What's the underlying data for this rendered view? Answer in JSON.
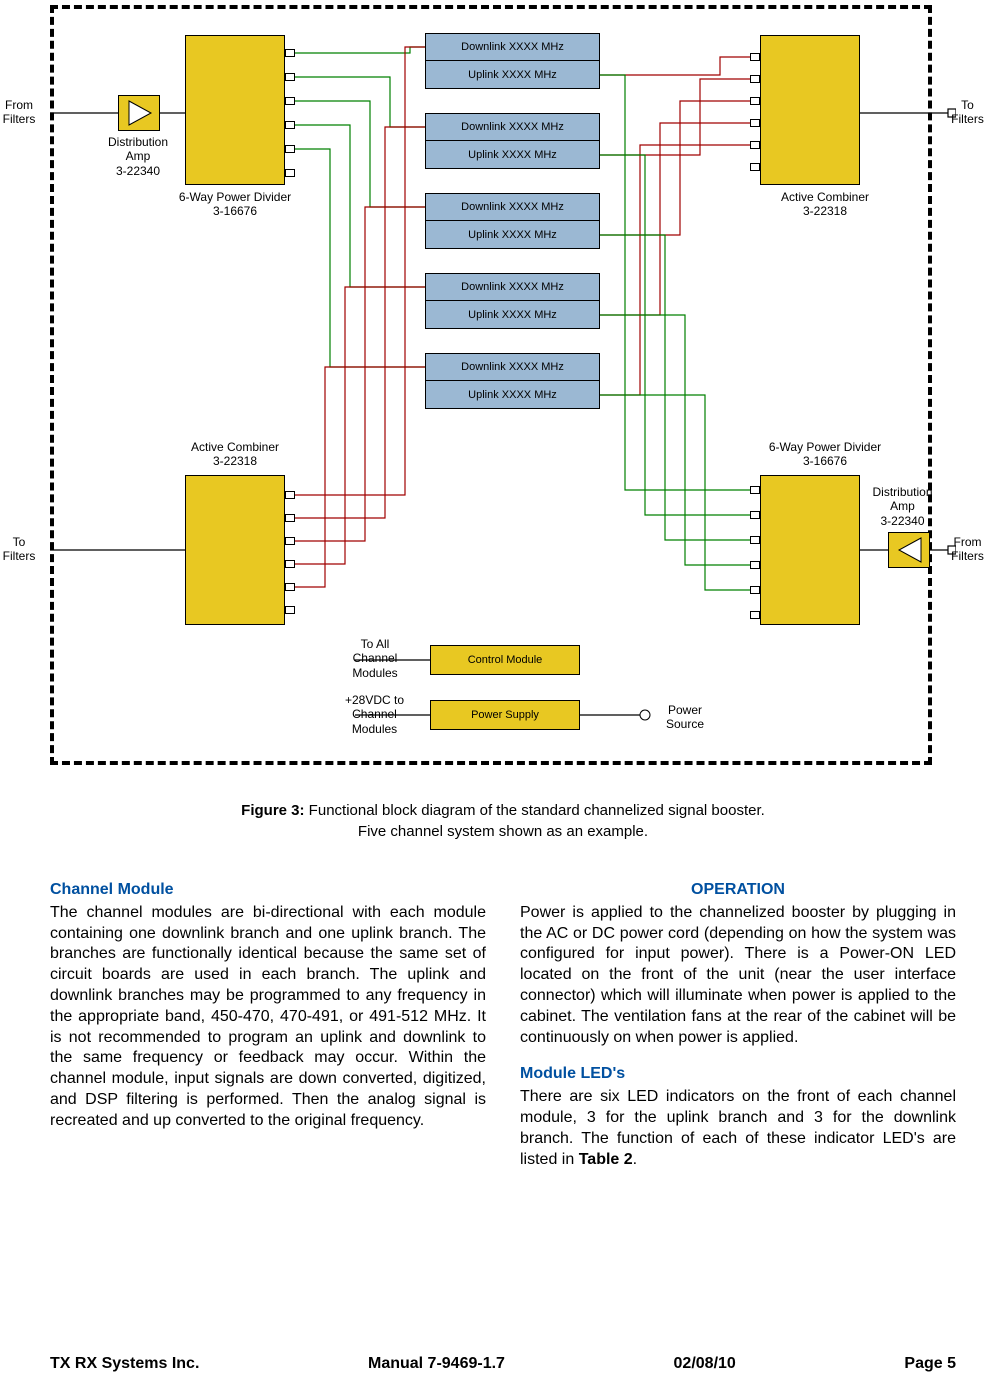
{
  "diagram": {
    "labels": {
      "from_filters_tl": "From\nFilters",
      "to_filters_tr": "To\nFilters",
      "to_filters_bl": "To\nFilters",
      "from_filters_br": "From\nFilters",
      "dist_amp_top": "Distribution\nAmp\n3-22340",
      "dist_amp_bot": "Distribution\nAmp\n3-22340",
      "divider_top": "6-Way Power Divider\n3-16676",
      "divider_bot": "6-Way Power Divider\n3-16676",
      "combiner_top": "Active Combiner\n3-22318",
      "combiner_bot": "Active Combiner\n3-22318",
      "control_module": "Control Module",
      "power_supply": "Power Supply",
      "to_all_channel": "To All\nChannel\nModules",
      "vdc_channel": "+28VDC to\nChannel\nModules",
      "power_source": "Power\nSource"
    },
    "channels": [
      {
        "dl": "Downlink XXXX MHz",
        "ul": "Uplink XXXX MHz"
      },
      {
        "dl": "Downlink XXXX MHz",
        "ul": "Uplink XXXX MHz"
      },
      {
        "dl": "Downlink XXXX MHz",
        "ul": "Uplink XXXX MHz"
      },
      {
        "dl": "Downlink XXXX MHz",
        "ul": "Uplink XXXX MHz"
      },
      {
        "dl": "Downlink XXXX MHz",
        "ul": "Uplink XXXX MHz"
      }
    ],
    "colors": {
      "yellow": "#e8c822",
      "blue": "#9bb8d3",
      "green_wire": "#008000",
      "red_wire": "#a00000",
      "black": "#000000"
    }
  },
  "caption": {
    "bold": "Figure 3:",
    "line1": " Functional block diagram of the standard channelized signal booster.",
    "line2": "Five channel system shown as an example."
  },
  "text": {
    "h_channel": "Channel Module",
    "p_channel": "The channel modules are bi-directional with each module containing one downlink branch and one uplink branch. The branches are functionally identical because the same set of circuit boards are used in each branch. The uplink and downlink branches may be programmed to any frequency in the appropriate band, 450-470, 470-491, or 491-512 MHz. It is not recommended to program an uplink and downlink to the same frequency or feedback may occur. Within the channel module, input signals are down converted, digitized, and DSP filtering is performed. Then the analog signal is recreated and up converted to the original frequency.",
    "h_operation": "OPERATION",
    "p_operation": "Power is applied to the channelized booster by plugging in the AC or DC power cord (depending on how the system was configured for input power). There is a Power-ON LED located on the front of the unit (near the user interface connector) which will illuminate when power is applied to the cabinet. The ventilation fans at the rear of the cabinet will be continuously on when power is applied.",
    "h_led": "Module LED's",
    "p_led": "There are six LED indicators on the front of each channel module, 3 for the uplink branch and 3 for the downlink branch. The function of each of these indicator LED's are listed in ",
    "p_led_bold": "Table 2",
    "p_led_end": "."
  },
  "footer": {
    "company": "TX RX Systems Inc.",
    "manual": "Manual 7-9469-1.7",
    "date": "02/08/10",
    "page": "Page 5"
  }
}
